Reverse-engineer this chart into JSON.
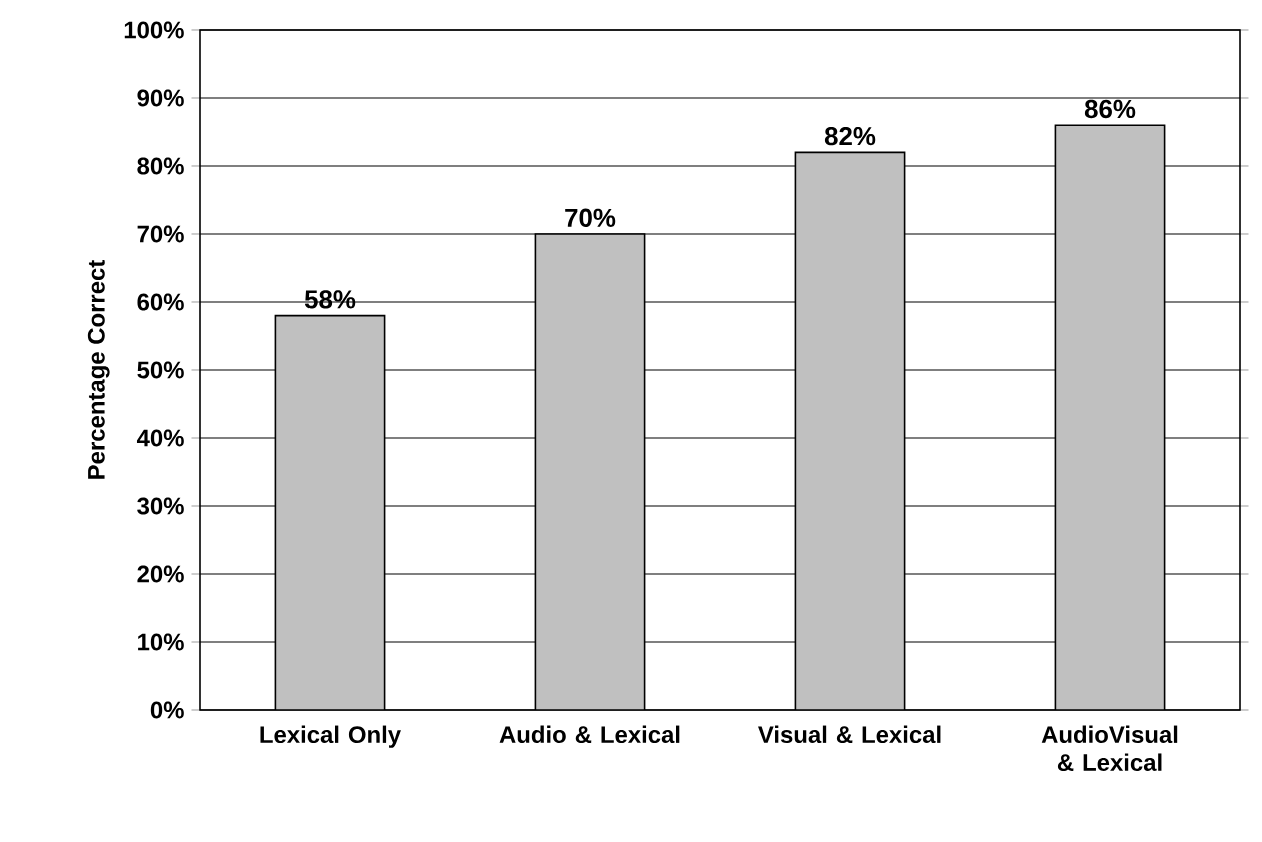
{
  "chart_data": {
    "type": "bar",
    "ylabel": "Percentage Correct",
    "categories": [
      "Lexical Only",
      "Audio & Lexical",
      "Visual & Lexical",
      "AudioVisual & Lexical"
    ],
    "values": [
      58,
      70,
      82,
      86
    ],
    "value_labels": [
      "58%",
      "70%",
      "82%",
      "86%"
    ],
    "color": "#c0c0c0",
    "ylim": [
      0,
      100
    ],
    "yticks": [
      {
        "value": 0,
        "label": "0%"
      },
      {
        "value": 10,
        "label": "10%"
      },
      {
        "value": 20,
        "label": "20%"
      },
      {
        "value": 30,
        "label": "30%"
      },
      {
        "value": 40,
        "label": "40%"
      },
      {
        "value": 50,
        "label": "50%"
      },
      {
        "value": 60,
        "label": "60%"
      },
      {
        "value": 70,
        "label": "70%"
      },
      {
        "value": 80,
        "label": "80%"
      },
      {
        "value": 90,
        "label": "90%"
      },
      {
        "value": 100,
        "label": "100%"
      }
    ],
    "grid": "y"
  }
}
